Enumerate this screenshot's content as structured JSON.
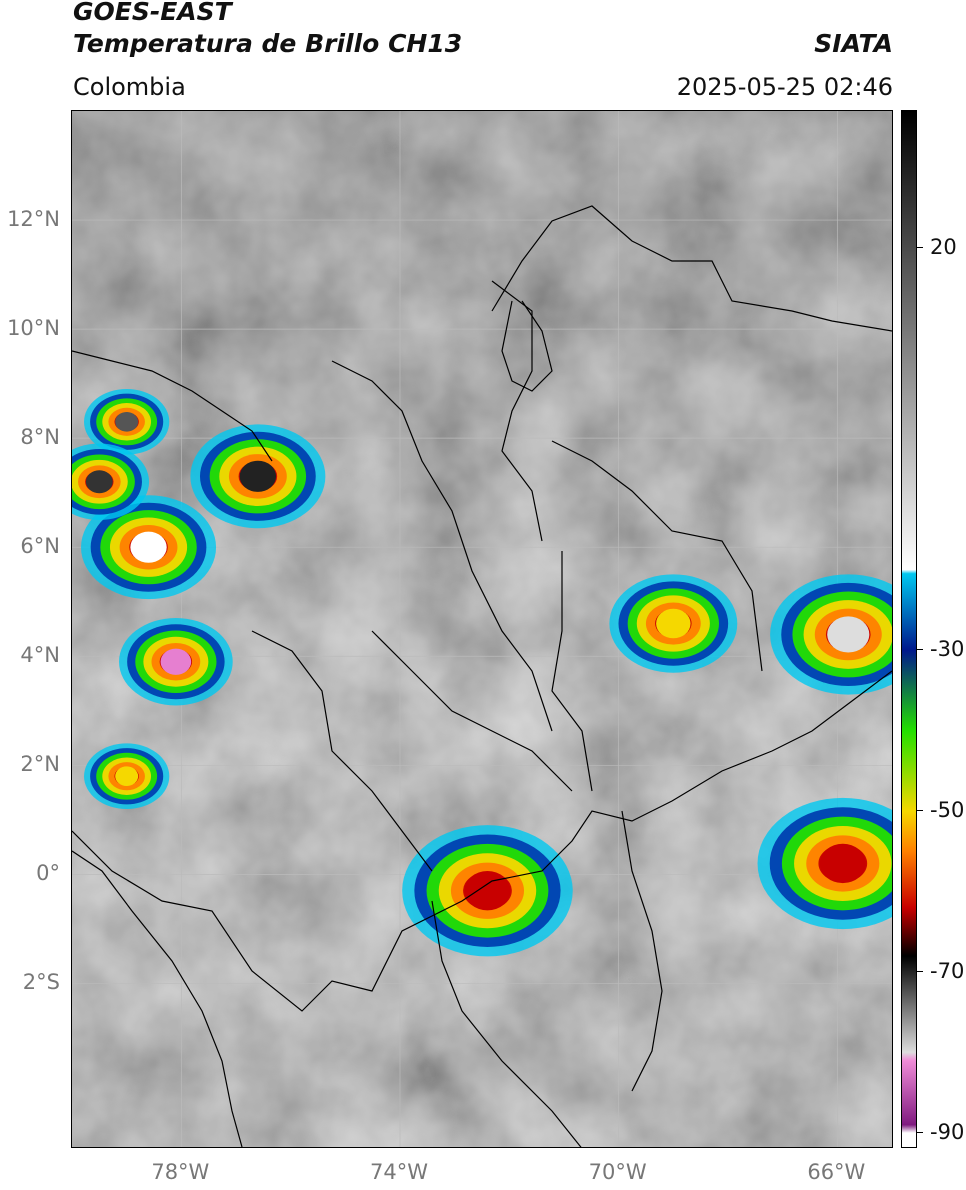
{
  "header": {
    "title_line1": "GOES-EAST",
    "title_line2": "Temperatura de Brillo CH13",
    "brand": "SIATA",
    "region": "Colombia",
    "timestamp": "2025-05-25 02:46"
  },
  "map": {
    "lon_range": [
      -80,
      -65
    ],
    "lat_range": [
      -5,
      14
    ],
    "lat_ticks": [
      {
        "value": 12,
        "label": "12°N"
      },
      {
        "value": 10,
        "label": "10°N"
      },
      {
        "value": 8,
        "label": "8°N"
      },
      {
        "value": 6,
        "label": "6°N"
      },
      {
        "value": 4,
        "label": "4°N"
      },
      {
        "value": 2,
        "label": "2°N"
      },
      {
        "value": 0,
        "label": "0°"
      },
      {
        "value": -2,
        "label": "2°S"
      }
    ],
    "lon_ticks": [
      {
        "value": -78,
        "label": "78°W"
      },
      {
        "value": -74,
        "label": "74°W"
      },
      {
        "value": -70,
        "label": "70°W"
      },
      {
        "value": -66,
        "label": "66°W"
      }
    ],
    "gridlines": true,
    "storm_cells": [
      {
        "lon": -78.6,
        "lat": 6.0,
        "r": 0.95,
        "core": "#ffffff"
      },
      {
        "lon": -78.1,
        "lat": 3.9,
        "r": 0.8,
        "core": "#e67fd0"
      },
      {
        "lon": -76.6,
        "lat": 7.3,
        "r": 0.95,
        "core": "#222222"
      },
      {
        "lon": -79.0,
        "lat": 8.3,
        "r": 0.6,
        "core": "#555555"
      },
      {
        "lon": -79.5,
        "lat": 7.2,
        "r": 0.7,
        "core": "#333333"
      },
      {
        "lon": -79.0,
        "lat": 1.8,
        "r": 0.6,
        "core": "#f5d800"
      },
      {
        "lon": -72.4,
        "lat": -0.3,
        "r": 1.2,
        "core": "#c80000"
      },
      {
        "lon": -69.0,
        "lat": 4.6,
        "r": 0.9,
        "core": "#f5d800"
      },
      {
        "lon": -65.8,
        "lat": 4.4,
        "r": 1.1,
        "core": "#dddddd"
      },
      {
        "lon": -65.9,
        "lat": 0.2,
        "r": 1.2,
        "core": "#c80000"
      }
    ]
  },
  "colorbar": {
    "range": [
      -92,
      37
    ],
    "tick_labels": [
      {
        "value": 20,
        "label": "20"
      },
      {
        "value": -30,
        "label": "-30"
      },
      {
        "value": -50,
        "label": "-50"
      },
      {
        "value": -70,
        "label": "-70"
      },
      {
        "value": -90,
        "label": "-90"
      }
    ],
    "stops": [
      {
        "value": 37,
        "color": "#000000"
      },
      {
        "value": 10,
        "color": "#777777"
      },
      {
        "value": -20,
        "color": "#ffffff"
      },
      {
        "value": -20.5,
        "color": "#00c8f0"
      },
      {
        "value": -30,
        "color": "#00188c"
      },
      {
        "value": -40,
        "color": "#23e000"
      },
      {
        "value": -50,
        "color": "#f5d800"
      },
      {
        "value": -55,
        "color": "#ff8000"
      },
      {
        "value": -62,
        "color": "#c80000"
      },
      {
        "value": -68,
        "color": "#000000"
      },
      {
        "value": -80,
        "color": "#dddddd"
      },
      {
        "value": -81,
        "color": "#f08cd8"
      },
      {
        "value": -89,
        "color": "#801a80"
      },
      {
        "value": -90,
        "color": "#ffffff"
      }
    ]
  }
}
